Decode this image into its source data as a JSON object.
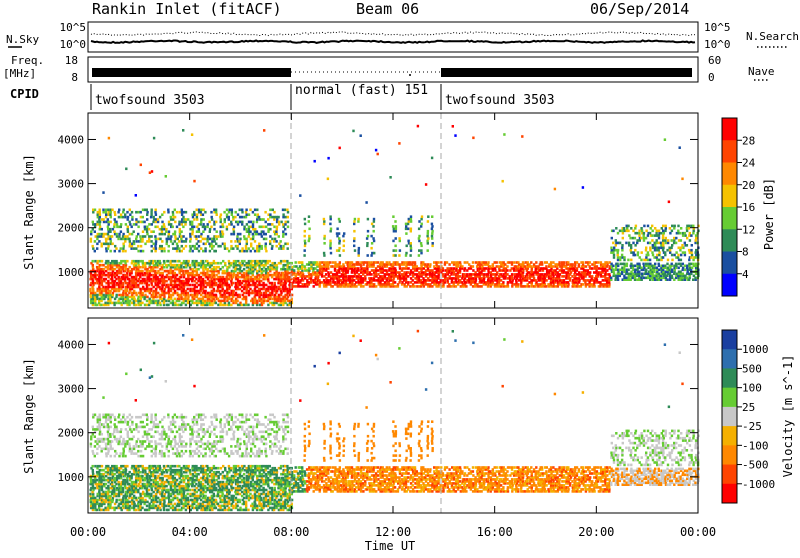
{
  "header": {
    "title": "Rankin Inlet (fitACF)",
    "beam": "Beam 06",
    "date": "06/Sep/2014"
  },
  "panels": {
    "noise": {
      "left_label": "N.Sky",
      "right_label": "N.Search",
      "yticks_left": [
        "10^5",
        "10^0"
      ],
      "yticks_right": [
        "10^5",
        "10^0"
      ]
    },
    "freq": {
      "label_line1": "Freq.",
      "label_line2": "[MHz]",
      "yticks_left": [
        "18",
        "8"
      ],
      "yticks_right": [
        "60",
        "0"
      ],
      "right_label": "Nave"
    },
    "cpid": {
      "label": "CPID",
      "segments": [
        {
          "label": "twofsound 3503",
          "start_h": 0,
          "end_h": 8
        },
        {
          "label": "normal (fast) 151",
          "start_h": 8,
          "end_h": 14
        },
        {
          "label": "twofsound 3503",
          "start_h": 14,
          "end_h": 24
        }
      ]
    }
  },
  "power_colorbar": {
    "title": "Power [dB]",
    "ticks": [
      "28",
      "24",
      "20",
      "16",
      "12",
      "8",
      "4"
    ],
    "colors": [
      "#ff0000",
      "#ff4400",
      "#ff8800",
      "#f5c200",
      "#66cc33",
      "#2e8b57",
      "#1a4fa0",
      "#0000ff"
    ]
  },
  "velocity_colorbar": {
    "title": "Velocity [m s^-1]",
    "ticks": [
      "1000",
      "500",
      "100",
      "25",
      "-25",
      "-100",
      "-500",
      "-1000"
    ],
    "colors": [
      "#1a3fa0",
      "#2e6fae",
      "#2e8b57",
      "#66cc33",
      "#c8c8c8",
      "#f5b000",
      "#ff8800",
      "#ff4400",
      "#ff0000"
    ]
  },
  "xaxis": {
    "title": "Time UT",
    "ticks": [
      "00:00",
      "04:00",
      "08:00",
      "12:00",
      "16:00",
      "20:00",
      "00:00"
    ]
  },
  "chart_data": [
    {
      "type": "heatmap",
      "title": "Power",
      "ylabel": "Slant Range [km]",
      "xlabel": "Time UT",
      "xlim_hours": [
        0,
        24
      ],
      "ylim": [
        180,
        4600
      ],
      "yticks": [
        1000,
        2000,
        3000,
        4000
      ],
      "colorbar_label": "Power [dB]",
      "colorbar_range": [
        0,
        30
      ],
      "features": [
        {
          "t_start": 0.0,
          "t_end": 8.0,
          "range_low_km": 300,
          "range_high_km": 1300,
          "peak_power_db": 28
        },
        {
          "t_start": 8.0,
          "t_end": 14.0,
          "range_low_km": 700,
          "range_high_km": 1200,
          "peak_power_db": 28
        },
        {
          "t_start": 14.0,
          "t_end": 20.5,
          "range_low_km": 700,
          "range_high_km": 1200,
          "peak_power_db": 28
        },
        {
          "t_start": 0.0,
          "t_end": 7.5,
          "range_low_km": 1500,
          "range_high_km": 2500,
          "peak_power_db": 12
        },
        {
          "t_start": 20.5,
          "t_end": 24.0,
          "range_low_km": 1300,
          "range_high_km": 2100,
          "peak_power_db": 8
        }
      ]
    },
    {
      "type": "heatmap",
      "title": "Velocity",
      "ylabel": "Slant Range [km]",
      "xlabel": "Time UT",
      "xlim_hours": [
        0,
        24
      ],
      "ylim": [
        180,
        4600
      ],
      "yticks": [
        1000,
        2000,
        3000,
        4000
      ],
      "colorbar_label": "Velocity [m s^-1]",
      "colorbar_range": [
        -1000,
        1000
      ],
      "features": [
        {
          "t_start": 0.0,
          "t_end": 8.5,
          "range_low_km": 700,
          "range_high_km": 1500,
          "velocity_ms": 100
        },
        {
          "t_start": 9.0,
          "t_end": 20.5,
          "range_low_km": 700,
          "range_high_km": 1300,
          "velocity_ms": -300
        },
        {
          "t_start": 0.0,
          "t_end": 8.5,
          "range_low_km": 1500,
          "range_high_km": 2500,
          "velocity_ms": 0
        },
        {
          "t_start": 20.5,
          "t_end": 24.0,
          "range_low_km": 1300,
          "range_high_km": 2100,
          "velocity_ms": 0
        }
      ]
    }
  ]
}
